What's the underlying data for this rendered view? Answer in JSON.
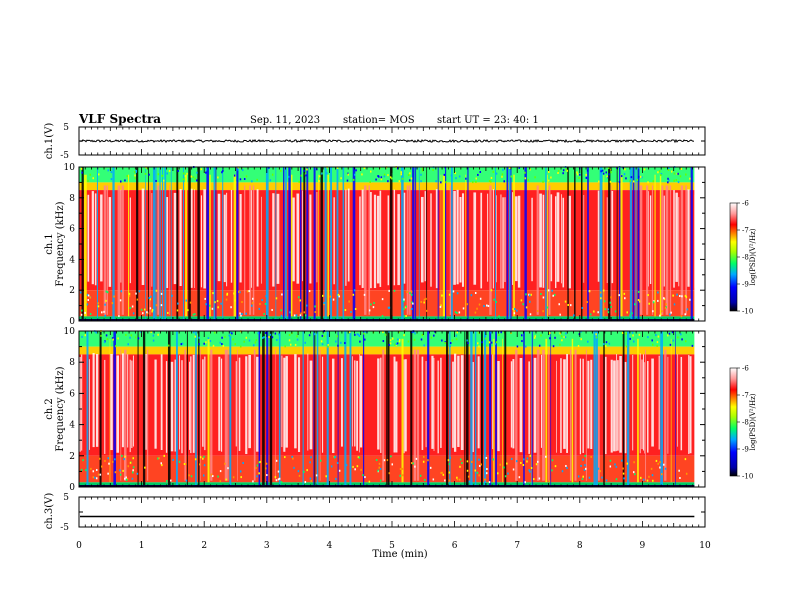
{
  "header": {
    "title": "VLF Spectra",
    "date": "Sep. 11, 2023",
    "station": "station= MOS",
    "start_ut": "start UT =  23: 40: 1"
  },
  "colors": {
    "spectrogram_scale": [
      "#000000",
      "#0000ff",
      "#00aaff",
      "#00ff66",
      "#ffff00",
      "#ff7f00",
      "#ff0000",
      "#ffffff"
    ]
  },
  "chart_data": [
    {
      "type": "line",
      "panel": "ch.1 waveform",
      "ylabel": "ch.1(V)",
      "ylim": [
        -5,
        5
      ],
      "yticks": [
        "5",
        "-5"
      ],
      "x_range_min": [
        0,
        10
      ],
      "series": [
        {
          "values_note": "noisy trace",
          "mean": 0.0,
          "amplitude": 0.4
        }
      ]
    },
    {
      "type": "heatmap",
      "panel": "ch.1 spectrogram",
      "ylabel": "ch.1\nFrequency (kHz)",
      "ylim": [
        0,
        10
      ],
      "yticks": [
        "0",
        "2",
        "4",
        "6",
        "8",
        "10"
      ],
      "colorbar": {
        "label": "log(PSD)(V²/Hz)",
        "range": [
          -10,
          -6
        ],
        "ticks": [
          "-6",
          "-7",
          "-8",
          "-9",
          "-10"
        ]
      }
    },
    {
      "type": "heatmap",
      "panel": "ch.2 spectrogram",
      "ylabel": "ch.2\nFrequency (kHz)",
      "ylim": [
        0,
        10
      ],
      "yticks": [
        "0",
        "2",
        "4",
        "6",
        "8",
        "10"
      ],
      "colorbar": {
        "label": "log(PSD)(V²/Hz)",
        "range": [
          -10,
          -6
        ],
        "ticks": [
          "-6",
          "-7",
          "-8",
          "-9",
          "-10"
        ]
      }
    },
    {
      "type": "line",
      "panel": "ch.3 waveform",
      "ylabel": "ch.3(V)",
      "ylim": [
        -5,
        5
      ],
      "yticks": [
        "5",
        "-5"
      ],
      "series": [
        {
          "values_note": "flat trace",
          "mean": -1.5
        }
      ]
    }
  ],
  "xaxis": {
    "label": "Time (min)",
    "ticks": [
      "0",
      "1",
      "2",
      "3",
      "4",
      "5",
      "6",
      "7",
      "8",
      "9",
      "10"
    ],
    "xlim": [
      0,
      10
    ],
    "data_end": 9.83
  }
}
